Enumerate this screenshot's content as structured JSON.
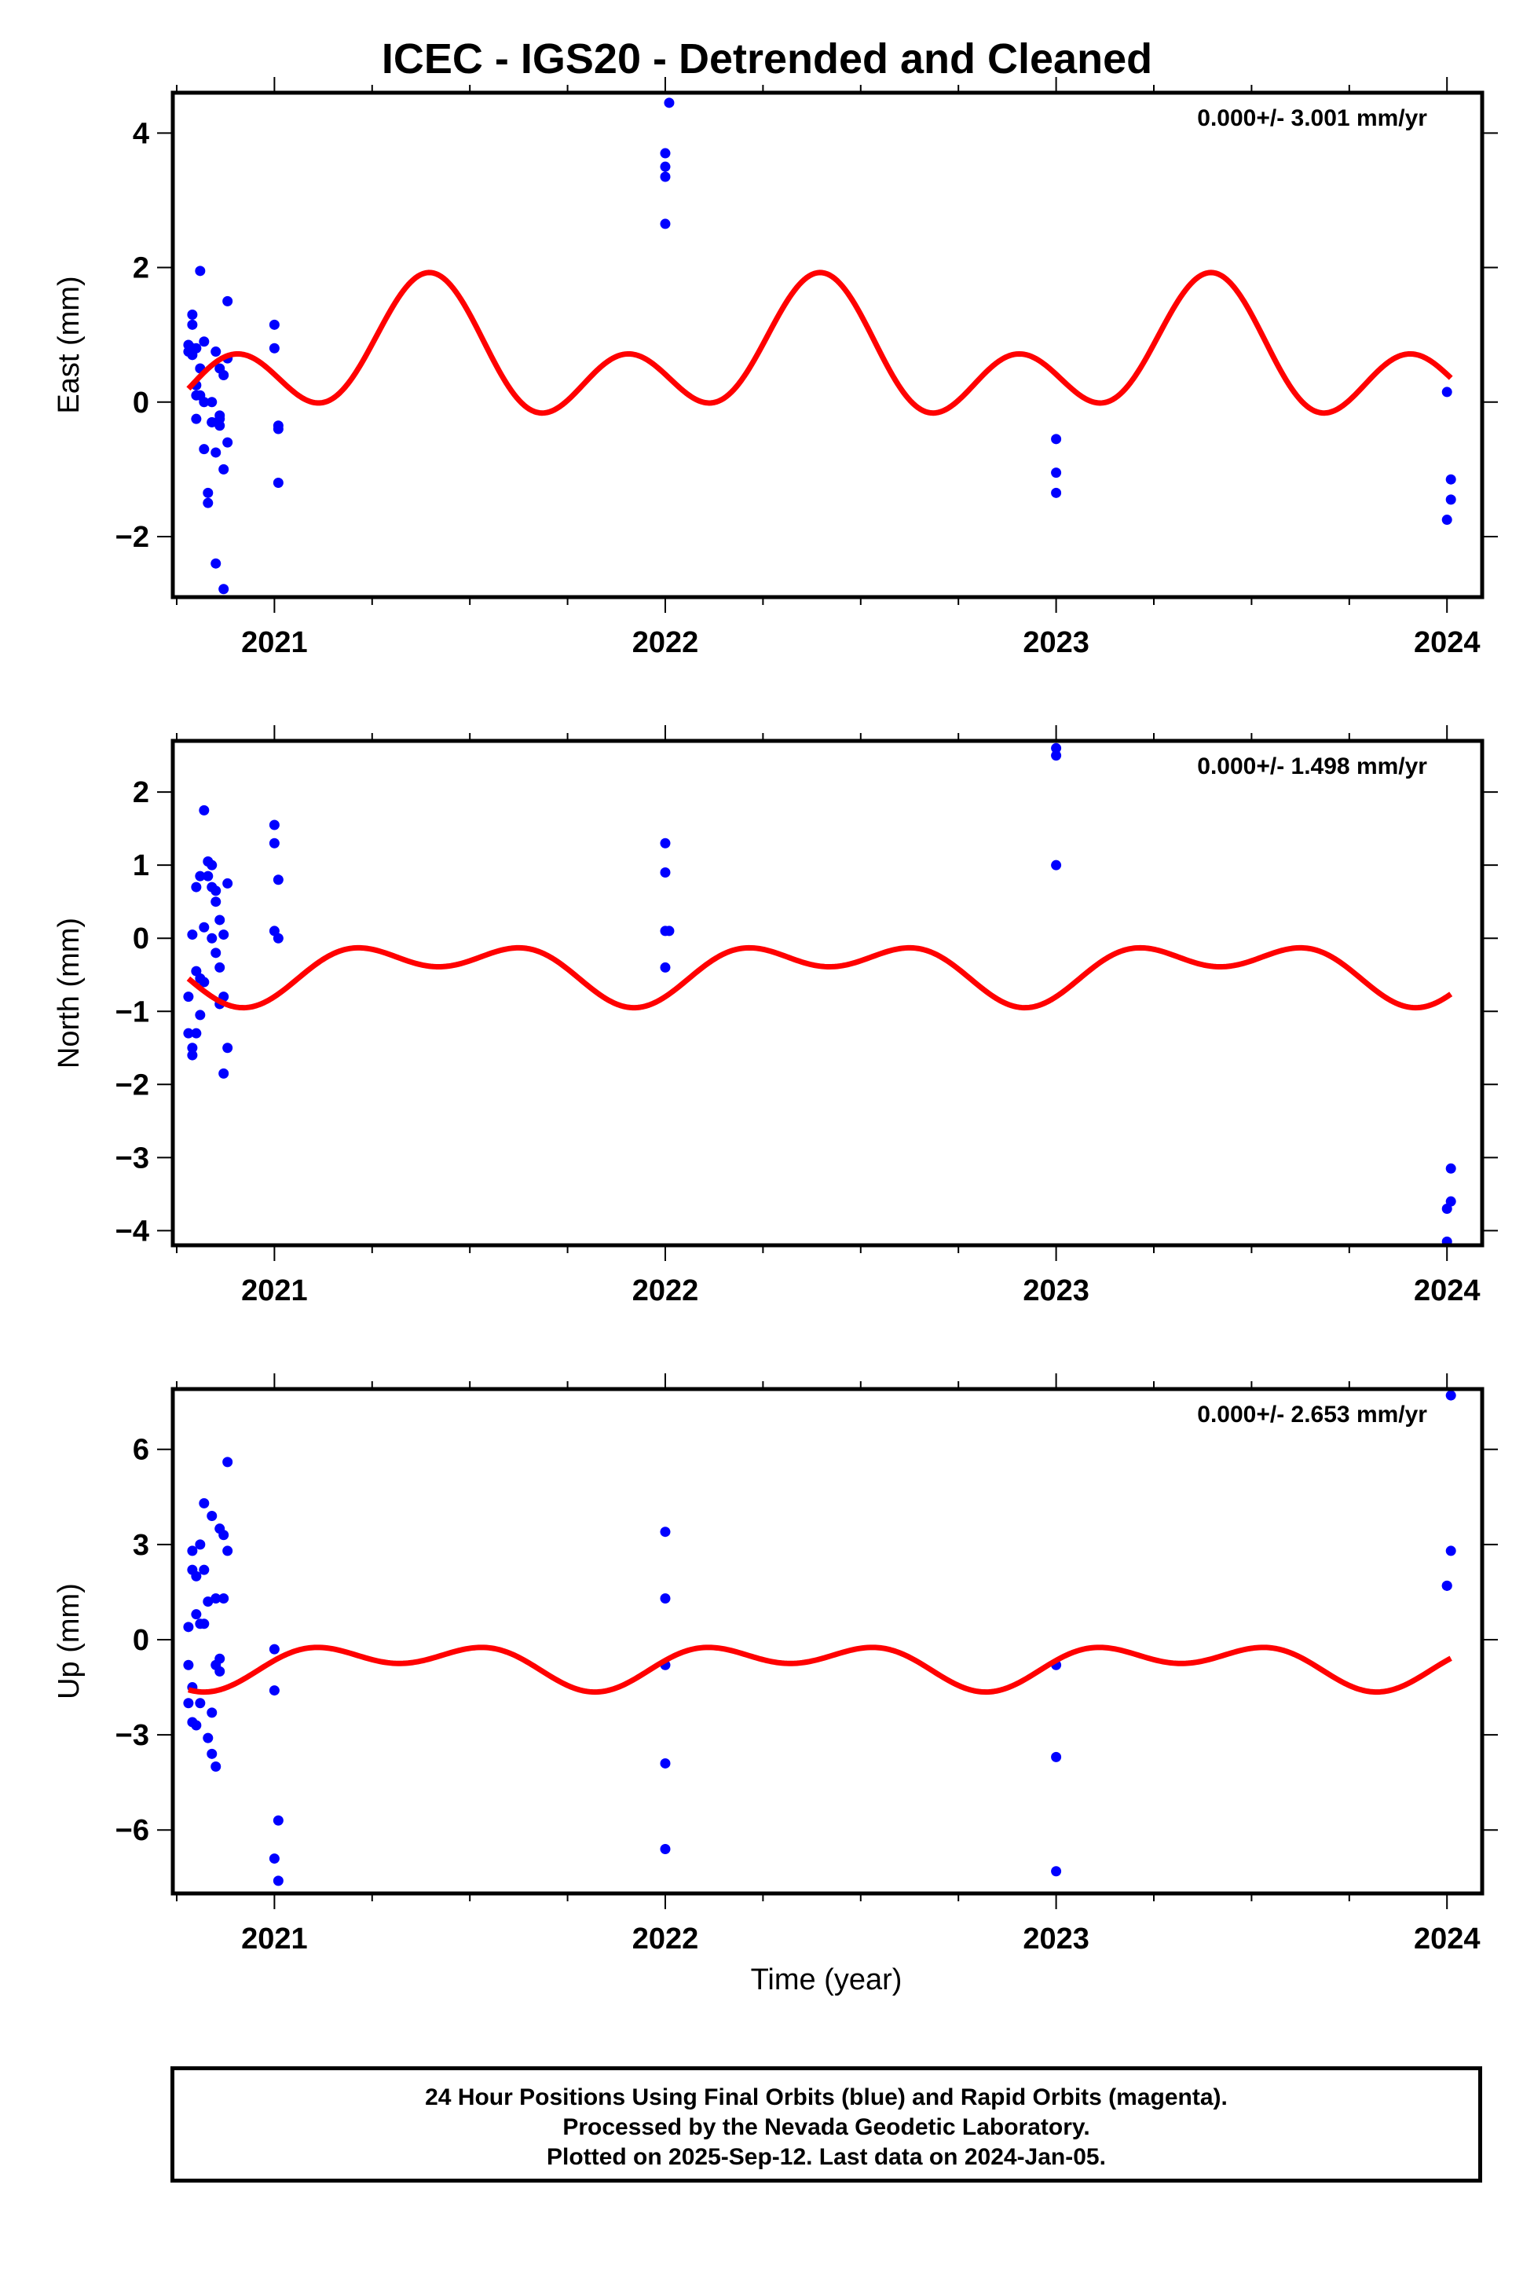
{
  "title": "ICEC - IGS20 - Detrended and Cleaned",
  "colors": {
    "final_points": "#0000ff",
    "fit_curve": "#ff0000",
    "frame": "#000000"
  },
  "xlabel_bottom": "Time (year)",
  "footer": {
    "line1": "24 Hour Positions Using Final Orbits (blue) and Rapid Orbits (magenta).",
    "line2": "Processed by the Nevada Geodetic Laboratory.",
    "line3": "Plotted on 2025-Sep-12. Last data on 2024-Jan-05."
  },
  "chart_data": [
    {
      "type": "scatter",
      "ylabel": "East (mm)",
      "rate_text": "0.000+/- 3.001 mm/yr",
      "xlim": [
        2020.74,
        2024.09
      ],
      "ylim": [
        -2.9,
        4.6
      ],
      "xticks": [
        2021,
        2022,
        2023,
        2024
      ],
      "yticks": [
        -2,
        0,
        2,
        4
      ],
      "points": {
        "x": [
          2020.78,
          2020.78,
          2020.79,
          2020.79,
          2020.79,
          2020.79,
          2020.8,
          2020.8,
          2020.8,
          2020.8,
          2020.81,
          2020.81,
          2020.81,
          2020.82,
          2020.82,
          2020.82,
          2020.83,
          2020.83,
          2020.84,
          2020.84,
          2020.84,
          2020.85,
          2020.85,
          2020.85,
          2020.86,
          2020.86,
          2020.86,
          2020.86,
          2020.87,
          2020.87,
          2020.87,
          2020.88,
          2020.88,
          2020.88,
          2021.0,
          2021.0,
          2021.01,
          2021.01,
          2021.01,
          2022.0,
          2022.0,
          2022.0,
          2022.01,
          2022.0,
          2023.0,
          2023.0,
          2023.0,
          2024.0,
          2024.0,
          2024.01,
          2024.01
        ],
        "y": [
          0.75,
          0.85,
          0.8,
          0.7,
          1.3,
          1.15,
          0.8,
          0.1,
          -0.25,
          0.25,
          1.95,
          0.5,
          0.1,
          -0.7,
          0.9,
          0.0,
          -1.5,
          -1.35,
          -0.3,
          0.0,
          -0.3,
          -2.4,
          0.75,
          -0.75,
          0.5,
          -0.2,
          -0.35,
          -0.25,
          -1.0,
          0.4,
          -2.78,
          1.5,
          0.65,
          -0.6,
          1.15,
          0.8,
          -0.4,
          -0.35,
          -1.2,
          3.7,
          3.5,
          3.35,
          4.45,
          2.65,
          -0.55,
          -1.05,
          -1.35,
          0.15,
          -1.75,
          -1.45,
          -1.15
        ]
      },
      "fit": {
        "offset": 0.65,
        "annual": {
          "amp": 0.61,
          "phase_year": 2020.88
        },
        "semiannual": {
          "amp": 0.67,
          "phase_year": 2021.15
        }
      }
    },
    {
      "type": "scatter",
      "ylabel": "North (mm)",
      "rate_text": "0.000+/- 1.498 mm/yr",
      "xlim": [
        2020.74,
        2024.09
      ],
      "ylim": [
        -4.2,
        2.7
      ],
      "xticks": [
        2021,
        2022,
        2023,
        2024
      ],
      "yticks": [
        -4,
        -3,
        -2,
        -1,
        0,
        1,
        2
      ],
      "points": {
        "x": [
          2020.78,
          2020.78,
          2020.79,
          2020.79,
          2020.79,
          2020.8,
          2020.8,
          2020.8,
          2020.81,
          2020.81,
          2020.81,
          2020.82,
          2020.82,
          2020.82,
          2020.83,
          2020.83,
          2020.84,
          2020.84,
          2020.84,
          2020.85,
          2020.85,
          2020.85,
          2020.86,
          2020.86,
          2020.86,
          2020.87,
          2020.87,
          2020.87,
          2020.88,
          2020.88,
          2021.0,
          2021.0,
          2021.01,
          2021.0,
          2021.01,
          2022.0,
          2022.0,
          2022.0,
          2022.01,
          2022.0,
          2023.0,
          2023.0,
          2023.0,
          2024.0,
          2024.0,
          2024.01,
          2024.01
        ],
        "y": [
          -0.8,
          -1.3,
          -1.5,
          -1.6,
          0.05,
          0.7,
          -0.45,
          -1.3,
          0.85,
          -0.55,
          -1.05,
          1.75,
          0.15,
          -0.6,
          1.05,
          0.85,
          1.0,
          0.7,
          0.0,
          0.65,
          0.5,
          -0.2,
          0.25,
          -0.4,
          -0.9,
          0.05,
          -0.8,
          -1.85,
          0.75,
          -1.5,
          1.55,
          1.3,
          0.8,
          0.1,
          0.0,
          1.3,
          0.9,
          0.1,
          0.1,
          -0.4,
          2.6,
          2.5,
          1.0,
          -4.15,
          -3.7,
          -3.6,
          -3.15
        ]
      },
      "fit": {
        "offset": -0.42,
        "annual": {
          "amp": 0.28,
          "phase_year": 2020.92
        },
        "semiannual": {
          "amp": 0.25,
          "phase_year": 2020.92
        }
      }
    },
    {
      "type": "scatter",
      "ylabel": "Up (mm)",
      "rate_text": "0.000+/- 2.653 mm/yr",
      "xlim": [
        2020.74,
        2024.09
      ],
      "ylim": [
        -8.0,
        7.9
      ],
      "xticks": [
        2021,
        2022,
        2023,
        2024
      ],
      "yticks": [
        -6,
        -3,
        0,
        3,
        6
      ],
      "points": {
        "x": [
          2020.78,
          2020.78,
          2020.78,
          2020.79,
          2020.79,
          2020.79,
          2020.79,
          2020.8,
          2020.8,
          2020.8,
          2020.81,
          2020.81,
          2020.81,
          2020.82,
          2020.82,
          2020.82,
          2020.83,
          2020.83,
          2020.84,
          2020.84,
          2020.84,
          2020.85,
          2020.85,
          2020.85,
          2020.86,
          2020.86,
          2020.86,
          2020.87,
          2020.87,
          2020.88,
          2020.88,
          2021.0,
          2021.0,
          2021.01,
          2021.0,
          2021.01,
          2022.0,
          2022.0,
          2022.0,
          2022.0,
          2022.0,
          2023.0,
          2023.0,
          2023.0,
          2024.0,
          2024.0,
          2024.01,
          2024.01
        ],
        "y": [
          0.4,
          -0.8,
          -2.0,
          2.8,
          2.2,
          -1.5,
          -2.6,
          2.0,
          0.8,
          -2.7,
          3.0,
          0.5,
          -2.0,
          4.3,
          2.2,
          0.5,
          1.2,
          -3.1,
          3.9,
          -3.6,
          -2.3,
          -4.0,
          1.3,
          -0.8,
          3.5,
          -0.6,
          -1.0,
          1.3,
          3.3,
          5.6,
          2.8,
          -0.3,
          -1.6,
          -5.7,
          -6.9,
          -7.6,
          3.4,
          1.3,
          -0.8,
          -3.9,
          -6.6,
          -0.8,
          -3.7,
          -7.3,
          1.7,
          1.7,
          2.8,
          7.7
        ]
      },
      "fit": {
        "offset": -0.75,
        "annual": {
          "amp": 0.45,
          "phase_year": 2020.82
        },
        "semiannual": {
          "amp": 0.45,
          "phase_year": 2020.82
        }
      }
    }
  ]
}
